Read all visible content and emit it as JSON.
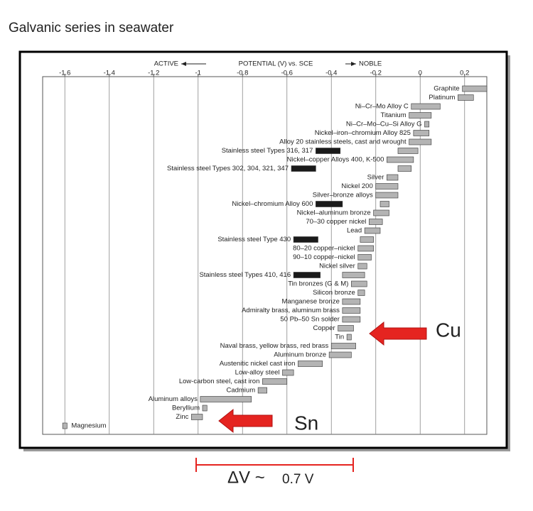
{
  "slide_title": "Galvanic series in seawater",
  "chart_data": {
    "type": "range-bar",
    "axis_label": {
      "left": "ACTIVE",
      "middle": "POTENTIAL (V) vs. SCE",
      "right": "NOBLE"
    },
    "xlim": [
      -1.7,
      0.3
    ],
    "xticks": [
      -1.6,
      -1.4,
      -1.2,
      -1.0,
      -0.8,
      -0.6,
      -0.4,
      -0.2,
      0,
      0.2
    ],
    "grid": true,
    "passive_color": "#b4b4b4",
    "active_color": "#1a1a1a",
    "materials": [
      {
        "name": "Graphite",
        "range": [
          0.19,
          0.3
        ]
      },
      {
        "name": "Platinum",
        "range": [
          0.17,
          0.24
        ]
      },
      {
        "name": "Ni–Cr–Mo Alloy C",
        "range": [
          -0.04,
          0.09
        ]
      },
      {
        "name": "Titanium",
        "range": [
          -0.05,
          0.05
        ]
      },
      {
        "name": "Ni–Cr–Mo–Cu–Si Alloy G",
        "range": [
          0.02,
          0.04
        ]
      },
      {
        "name": "Nickel–iron–chromium Alloy 825",
        "range": [
          -0.03,
          0.04
        ]
      },
      {
        "name": "Alloy 20 stainless steels, cast and wrought",
        "range": [
          -0.05,
          0.05
        ]
      },
      {
        "name": "Stainless steel Types 316, 317",
        "range": [
          -0.1,
          -0.01
        ],
        "active_range": [
          -0.47,
          -0.36
        ]
      },
      {
        "name": "Nickel–copper Alloys 400, K-500",
        "range": [
          -0.15,
          -0.03
        ]
      },
      {
        "name": "Stainless steel Types 302, 304, 321, 347",
        "range": [
          -0.1,
          -0.04
        ],
        "active_range": [
          -0.58,
          -0.47
        ]
      },
      {
        "name": "Silver",
        "range": [
          -0.15,
          -0.1
        ]
      },
      {
        "name": "Nickel 200",
        "range": [
          -0.2,
          -0.1
        ]
      },
      {
        "name": "Silver–bronze alloys",
        "range": [
          -0.2,
          -0.1
        ]
      },
      {
        "name": "Nickel–chromium Alloy 600",
        "range": [
          -0.18,
          -0.14
        ],
        "active_range": [
          -0.47,
          -0.35
        ]
      },
      {
        "name": "Nickel–aluminum bronze",
        "range": [
          -0.21,
          -0.14
        ]
      },
      {
        "name": "70–30 copper nickel",
        "range": [
          -0.23,
          -0.17
        ]
      },
      {
        "name": "Lead",
        "range": [
          -0.25,
          -0.18
        ]
      },
      {
        "name": "Stainless steel Type 430",
        "range": [
          -0.27,
          -0.21
        ],
        "active_range": [
          -0.57,
          -0.46
        ]
      },
      {
        "name": "80–20 copper–nickel",
        "range": [
          -0.28,
          -0.21
        ]
      },
      {
        "name": "90–10 copper–nickel",
        "range": [
          -0.28,
          -0.22
        ]
      },
      {
        "name": "Nickel silver",
        "range": [
          -0.28,
          -0.24
        ]
      },
      {
        "name": "Stainless steel Types 410, 416",
        "range": [
          -0.35,
          -0.25
        ],
        "active_range": [
          -0.57,
          -0.45
        ]
      },
      {
        "name": "Tin bronzes (G & M)",
        "range": [
          -0.31,
          -0.24
        ]
      },
      {
        "name": "Silicon bronze",
        "range": [
          -0.28,
          -0.25
        ]
      },
      {
        "name": "Manganese bronze",
        "range": [
          -0.35,
          -0.27
        ]
      },
      {
        "name": "Admiralty brass, aluminum brass",
        "range": [
          -0.35,
          -0.27
        ]
      },
      {
        "name": "50 Pb–50 Sn solder",
        "range": [
          -0.35,
          -0.27
        ]
      },
      {
        "name": "Copper",
        "range": [
          -0.37,
          -0.3
        ]
      },
      {
        "name": "Tin",
        "range": [
          -0.33,
          -0.31
        ]
      },
      {
        "name": "Naval brass, yellow brass, red brass",
        "range": [
          -0.4,
          -0.29
        ]
      },
      {
        "name": "Aluminum bronze",
        "range": [
          -0.41,
          -0.31
        ]
      },
      {
        "name": "Austenitic nickel cast iron",
        "range": [
          -0.55,
          -0.44
        ]
      },
      {
        "name": "Low-alloy steel",
        "range": [
          -0.62,
          -0.57
        ]
      },
      {
        "name": "Low-carbon steel, cast iron",
        "range": [
          -0.71,
          -0.6
        ]
      },
      {
        "name": "Cadmium",
        "range": [
          -0.73,
          -0.69
        ]
      },
      {
        "name": "Aluminum alloys",
        "range": [
          -0.99,
          -0.76
        ]
      },
      {
        "name": "Beryllium",
        "range": [
          -0.98,
          -0.96
        ]
      },
      {
        "name": "Zinc",
        "range": [
          -1.03,
          -0.98
        ]
      },
      {
        "name": "Magnesium",
        "range": [
          -1.61,
          -1.59
        ]
      }
    ],
    "annotations": {
      "cu": "Cu",
      "sn": "Sn",
      "delta_symbol": "ΔV ~",
      "delta_value": "0.7 V"
    }
  }
}
